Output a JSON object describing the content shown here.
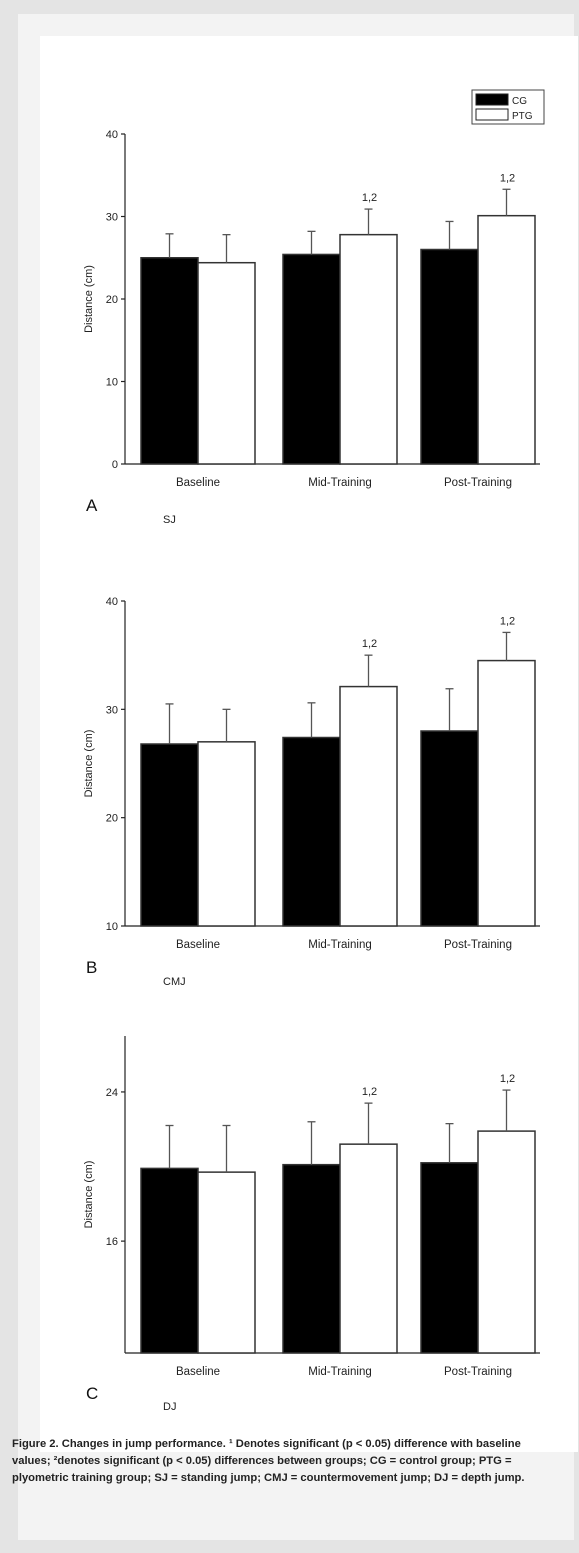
{
  "legend": [
    {
      "label": "CG",
      "fill": "#000000"
    },
    {
      "label": "PTG",
      "fill": "#ffffff"
    }
  ],
  "colors": {
    "cg": "#000000",
    "ptg": "#ffffff",
    "axis": "#222222"
  },
  "chart_data": [
    {
      "type": "bar",
      "panel": "A",
      "jump": "SJ",
      "categories": [
        "Baseline",
        "Mid-Training",
        "Post-Training"
      ],
      "ylabel": "Distance (cm)",
      "ylim": [
        0,
        40
      ],
      "yticks": [
        0,
        10,
        20,
        30,
        40
      ],
      "series": [
        {
          "name": "CG",
          "values": [
            25.0,
            25.4,
            26.0
          ],
          "errors": [
            2.9,
            2.8,
            3.4
          ]
        },
        {
          "name": "PTG",
          "values": [
            24.4,
            27.8,
            30.1
          ],
          "errors": [
            3.4,
            3.1,
            3.2
          ]
        }
      ],
      "annotations": [
        "",
        "1,2",
        "1,2"
      ]
    },
    {
      "type": "bar",
      "panel": "B",
      "jump": "CMJ",
      "categories": [
        "Baseline",
        "Mid-Training",
        "Post-Training"
      ],
      "ylabel": "Distance (cm)",
      "ylim": [
        10,
        40
      ],
      "yticks": [
        10,
        20,
        30,
        40
      ],
      "series": [
        {
          "name": "CG",
          "values": [
            26.8,
            27.4,
            28.0
          ],
          "errors": [
            3.7,
            3.2,
            3.9
          ]
        },
        {
          "name": "PTG",
          "values": [
            27.0,
            32.1,
            34.5
          ],
          "errors": [
            3.0,
            2.9,
            2.6
          ]
        }
      ],
      "annotations": [
        "",
        "1,2",
        "1,2"
      ]
    },
    {
      "type": "bar",
      "panel": "C",
      "jump": "DJ",
      "categories": [
        "Baseline",
        "Mid-Training",
        "Post-Training"
      ],
      "ylabel": "Distance (cm)",
      "ylim": [
        10,
        27
      ],
      "yticks": [
        16,
        24
      ],
      "series": [
        {
          "name": "CG",
          "values": [
            19.9,
            20.1,
            20.2
          ],
          "errors": [
            2.3,
            2.3,
            2.1
          ]
        },
        {
          "name": "PTG",
          "values": [
            19.7,
            21.2,
            21.9
          ],
          "errors": [
            2.5,
            2.2,
            2.2
          ]
        }
      ],
      "annotations": [
        "",
        "1,2",
        "1,2"
      ]
    }
  ],
  "caption": {
    "lead": "Figure 2.",
    "text": "Changes in jump performance. ¹ Denotes significant (p < 0.05) difference with baseline values; ²denotes significant (p < 0.05) differences between groups; CG = control group; PTG = plyometric training group; SJ = standing jump; CMJ = countermovement jump; DJ = depth jump."
  }
}
